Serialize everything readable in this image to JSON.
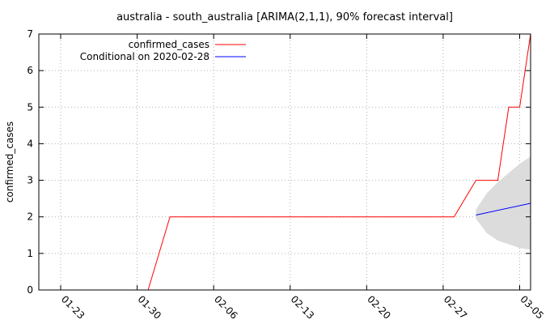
{
  "chart_data": {
    "type": "line",
    "title": "australia - south_australia [ARIMA(2,1,1), 90% forecast interval]",
    "ylabel": "confirmed_cases",
    "xlabel": "",
    "x_tick_labels": [
      "01-23",
      "01-30",
      "02-06",
      "02-13",
      "02-20",
      "02-27",
      "03-05"
    ],
    "x_tick_dates": [
      "2020-01-23",
      "2020-01-30",
      "2020-02-06",
      "2020-02-13",
      "2020-02-20",
      "2020-02-27",
      "2020-03-05"
    ],
    "xlim": [
      "2020-01-21",
      "2020-03-06"
    ],
    "ylim": [
      0,
      7
    ],
    "y_ticks": [
      0,
      1,
      2,
      3,
      4,
      5,
      6,
      7
    ],
    "grid": true,
    "legend_position": "top-left",
    "series": [
      {
        "name": "confirmed_cases",
        "color": "#ff0000",
        "points": [
          [
            "2020-01-31",
            0
          ],
          [
            "2020-02-02",
            2
          ],
          [
            "2020-02-28",
            2
          ],
          [
            "2020-03-01",
            3
          ],
          [
            "2020-03-03",
            3
          ],
          [
            "2020-03-04",
            5
          ],
          [
            "2020-03-05",
            5
          ],
          [
            "2020-03-06",
            7
          ]
        ]
      },
      {
        "name": "Conditional on 2020-02-28",
        "color": "#0000ff",
        "points": [
          [
            "2020-03-01",
            2.05
          ],
          [
            "2020-03-06",
            2.37
          ]
        ]
      }
    ],
    "forecast_interval": {
      "color": "#dcdcdc",
      "x": [
        "2020-03-01",
        "2020-03-02",
        "2020-03-03",
        "2020-03-04",
        "2020-03-05",
        "2020-03-06"
      ],
      "lower": [
        1.95,
        1.55,
        1.35,
        1.25,
        1.15,
        1.1
      ],
      "upper": [
        2.2,
        2.65,
        2.95,
        3.2,
        3.45,
        3.65
      ]
    }
  }
}
